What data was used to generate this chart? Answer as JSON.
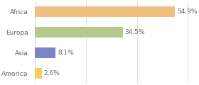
{
  "categories": [
    "Africa",
    "Europa",
    "Asia",
    "America"
  ],
  "values": [
    54.9,
    34.5,
    8.1,
    2.6
  ],
  "labels": [
    "54,9%",
    "34,5%",
    "8,1%",
    "2,6%"
  ],
  "bar_colors": [
    "#f0c080",
    "#b5c98e",
    "#7b86c2",
    "#f0d060"
  ],
  "background_color": "#ffffff",
  "xlim": [
    0,
    62
  ],
  "bar_height": 0.5,
  "label_fontsize": 6.5,
  "tick_fontsize": 6.5,
  "grid_ticks": [
    0,
    20,
    40,
    60
  ],
  "grid_color": "#d0d0d0",
  "text_color": "#666666"
}
